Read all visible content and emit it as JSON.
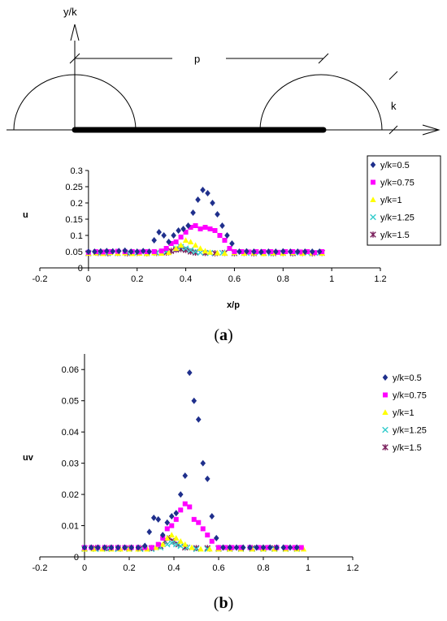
{
  "schematic": {
    "y_axis_label": "y/k",
    "pitch_label": "p",
    "height_label": "k"
  },
  "panels": [
    {
      "open": "(",
      "letter": "a",
      "close": ")"
    },
    {
      "open": "(",
      "letter": "b",
      "close": ")"
    }
  ],
  "chart_data": [
    {
      "type": "scatter",
      "title": "",
      "xlabel": "x/p",
      "ylabel": "u",
      "xlim": [
        -0.2,
        1.2
      ],
      "ylim": [
        0,
        0.3
      ],
      "xticks": [
        -0.2,
        0,
        0.2,
        0.4,
        0.6,
        0.8,
        1,
        1.2
      ],
      "yticks": [
        0,
        0.05,
        0.1,
        0.15,
        0.2,
        0.25,
        0.3
      ],
      "ytick_labels": [
        "0",
        "0.05",
        "0.1",
        "0.15",
        "0.2",
        "0.25",
        "0.3"
      ],
      "grid": false,
      "legend": "right",
      "series": [
        {
          "name": "y/k=0.5",
          "color": "#1f2f8c",
          "marker": "diamond",
          "x": [
            0,
            0.025,
            0.05,
            0.075,
            0.1,
            0.125,
            0.15,
            0.175,
            0.2,
            0.225,
            0.25,
            0.27,
            0.29,
            0.31,
            0.33,
            0.35,
            0.37,
            0.39,
            0.41,
            0.43,
            0.45,
            0.47,
            0.49,
            0.51,
            0.53,
            0.55,
            0.57,
            0.59,
            0.62,
            0.65,
            0.68,
            0.71,
            0.74,
            0.77,
            0.8,
            0.83,
            0.86,
            0.89,
            0.92,
            0.95
          ],
          "y": [
            0.05,
            0.05,
            0.051,
            0.052,
            0.051,
            0.052,
            0.053,
            0.05,
            0.05,
            0.052,
            0.05,
            0.085,
            0.11,
            0.1,
            0.08,
            0.1,
            0.115,
            0.12,
            0.13,
            0.17,
            0.21,
            0.24,
            0.23,
            0.2,
            0.165,
            0.13,
            0.1,
            0.075,
            0.05,
            0.051,
            0.05,
            0.049,
            0.05,
            0.05,
            0.051,
            0.05,
            0.05,
            0.05,
            0.05,
            0.05
          ]
        },
        {
          "name": "y/k=0.75",
          "color": "#ff00ff",
          "marker": "square",
          "x": [
            0,
            0.03,
            0.06,
            0.09,
            0.12,
            0.15,
            0.18,
            0.21,
            0.24,
            0.27,
            0.3,
            0.32,
            0.34,
            0.36,
            0.38,
            0.4,
            0.42,
            0.44,
            0.46,
            0.48,
            0.5,
            0.52,
            0.54,
            0.56,
            0.58,
            0.6,
            0.63,
            0.66,
            0.69,
            0.72,
            0.75,
            0.78,
            0.81,
            0.84,
            0.87,
            0.9,
            0.93,
            0.96
          ],
          "y": [
            0.048,
            0.05,
            0.049,
            0.05,
            0.051,
            0.05,
            0.05,
            0.049,
            0.05,
            0.05,
            0.052,
            0.06,
            0.075,
            0.08,
            0.095,
            0.11,
            0.125,
            0.13,
            0.12,
            0.125,
            0.12,
            0.115,
            0.1,
            0.085,
            0.06,
            0.05,
            0.05,
            0.049,
            0.05,
            0.05,
            0.05,
            0.048,
            0.05,
            0.05,
            0.049,
            0.05,
            0.047,
            0.05
          ]
        },
        {
          "name": "y/k=1",
          "color": "#ffff00",
          "marker": "triangle",
          "x": [
            0,
            0.03,
            0.06,
            0.09,
            0.12,
            0.15,
            0.18,
            0.21,
            0.24,
            0.27,
            0.3,
            0.33,
            0.36,
            0.38,
            0.4,
            0.42,
            0.44,
            0.46,
            0.48,
            0.5,
            0.53,
            0.56,
            0.6,
            0.64,
            0.68,
            0.72,
            0.76,
            0.8,
            0.84,
            0.88,
            0.92,
            0.96
          ],
          "y": [
            0.045,
            0.046,
            0.044,
            0.047,
            0.045,
            0.046,
            0.044,
            0.045,
            0.044,
            0.046,
            0.045,
            0.047,
            0.06,
            0.07,
            0.085,
            0.08,
            0.07,
            0.06,
            0.052,
            0.048,
            0.046,
            0.045,
            0.047,
            0.045,
            0.046,
            0.044,
            0.046,
            0.045,
            0.047,
            0.045,
            0.046,
            0.045
          ]
        },
        {
          "name": "y/k=1.25",
          "color": "#33cccc",
          "marker": "x",
          "x": [
            0,
            0.04,
            0.08,
            0.12,
            0.16,
            0.2,
            0.24,
            0.28,
            0.32,
            0.36,
            0.38,
            0.4,
            0.42,
            0.44,
            0.46,
            0.5,
            0.55,
            0.6,
            0.65,
            0.7,
            0.75,
            0.8,
            0.85,
            0.9,
            0.95
          ],
          "y": [
            0.046,
            0.047,
            0.046,
            0.045,
            0.047,
            0.046,
            0.047,
            0.046,
            0.05,
            0.06,
            0.065,
            0.06,
            0.055,
            0.05,
            0.047,
            0.046,
            0.046,
            0.047,
            0.046,
            0.047,
            0.045,
            0.046,
            0.047,
            0.046,
            0.046
          ]
        },
        {
          "name": "y/k=1.5",
          "color": "#7a1f5c",
          "marker": "star",
          "x": [
            0,
            0.04,
            0.08,
            0.12,
            0.16,
            0.2,
            0.24,
            0.28,
            0.32,
            0.34,
            0.36,
            0.38,
            0.4,
            0.42,
            0.44,
            0.48,
            0.52,
            0.56,
            0.6,
            0.64,
            0.68,
            0.72,
            0.76,
            0.8,
            0.84,
            0.88,
            0.92,
            0.96
          ],
          "y": [
            0.045,
            0.046,
            0.045,
            0.046,
            0.045,
            0.046,
            0.045,
            0.046,
            0.047,
            0.052,
            0.056,
            0.058,
            0.055,
            0.05,
            0.047,
            0.046,
            0.045,
            0.046,
            0.045,
            0.046,
            0.045,
            0.046,
            0.045,
            0.046,
            0.045,
            0.046,
            0.045,
            0.046
          ]
        }
      ]
    },
    {
      "type": "scatter",
      "title": "",
      "xlabel": "",
      "ylabel": "uv",
      "xlim": [
        -0.2,
        1.2
      ],
      "ylim": [
        0,
        0.065
      ],
      "xticks": [
        -0.2,
        0,
        0.2,
        0.4,
        0.6,
        0.8,
        1,
        1.2
      ],
      "yticks": [
        0,
        0.01,
        0.02,
        0.03,
        0.04,
        0.05,
        0.06
      ],
      "ytick_labels": [
        "0",
        "0.01",
        "0.02",
        "0.03",
        "0.04",
        "0.05",
        "0.06"
      ],
      "grid": false,
      "legend": "right",
      "series": [
        {
          "name": "y/k=0.5",
          "color": "#1f2f8c",
          "marker": "diamond",
          "x": [
            0,
            0.03,
            0.06,
            0.09,
            0.12,
            0.15,
            0.18,
            0.21,
            0.24,
            0.27,
            0.29,
            0.31,
            0.33,
            0.35,
            0.37,
            0.39,
            0.41,
            0.43,
            0.45,
            0.47,
            0.49,
            0.51,
            0.53,
            0.55,
            0.57,
            0.59,
            0.62,
            0.65,
            0.68,
            0.71,
            0.74,
            0.77,
            0.8,
            0.83,
            0.86,
            0.89,
            0.92,
            0.95
          ],
          "y": [
            0.003,
            0.003,
            0.003,
            0.003,
            0.003,
            0.003,
            0.003,
            0.003,
            0.003,
            0.0035,
            0.008,
            0.0125,
            0.012,
            0.007,
            0.011,
            0.013,
            0.014,
            0.02,
            0.026,
            0.059,
            0.05,
            0.044,
            0.03,
            0.025,
            0.013,
            0.006,
            0.003,
            0.003,
            0.003,
            0.003,
            0.003,
            0.003,
            0.003,
            0.003,
            0.003,
            0.003,
            0.003,
            0.003
          ]
        },
        {
          "name": "y/k=0.75",
          "color": "#ff00ff",
          "marker": "square",
          "x": [
            0,
            0.03,
            0.06,
            0.09,
            0.12,
            0.15,
            0.18,
            0.21,
            0.24,
            0.27,
            0.3,
            0.33,
            0.35,
            0.37,
            0.39,
            0.41,
            0.43,
            0.45,
            0.47,
            0.49,
            0.51,
            0.53,
            0.55,
            0.57,
            0.6,
            0.63,
            0.66,
            0.7,
            0.74,
            0.78,
            0.82,
            0.86,
            0.9,
            0.94,
            0.97
          ],
          "y": [
            0.003,
            0.003,
            0.003,
            0.003,
            0.003,
            0.003,
            0.003,
            0.003,
            0.003,
            0.003,
            0.003,
            0.004,
            0.006,
            0.009,
            0.01,
            0.012,
            0.015,
            0.017,
            0.016,
            0.012,
            0.011,
            0.009,
            0.007,
            0.005,
            0.003,
            0.003,
            0.003,
            0.003,
            0.003,
            0.003,
            0.003,
            0.003,
            0.003,
            0.003,
            0.003
          ]
        },
        {
          "name": "y/k=1",
          "color": "#ffff00",
          "marker": "triangle",
          "x": [
            0,
            0.04,
            0.08,
            0.12,
            0.16,
            0.2,
            0.24,
            0.28,
            0.32,
            0.35,
            0.37,
            0.39,
            0.41,
            0.43,
            0.45,
            0.48,
            0.52,
            0.56,
            0.6,
            0.65,
            0.7,
            0.75,
            0.8,
            0.85,
            0.9,
            0.95,
            0.98
          ],
          "y": [
            0.0025,
            0.0025,
            0.0025,
            0.0025,
            0.0025,
            0.0025,
            0.0025,
            0.0025,
            0.003,
            0.004,
            0.006,
            0.007,
            0.006,
            0.005,
            0.004,
            0.003,
            0.0025,
            0.0025,
            0.0025,
            0.0025,
            0.0025,
            0.0025,
            0.0025,
            0.0025,
            0.0025,
            0.0025,
            0.0025
          ]
        },
        {
          "name": "y/k=1.25",
          "color": "#33cccc",
          "marker": "x",
          "x": [
            0,
            0.05,
            0.1,
            0.15,
            0.2,
            0.25,
            0.3,
            0.34,
            0.37,
            0.39,
            0.41,
            0.43,
            0.46,
            0.5,
            0.55,
            0.6,
            0.65,
            0.7,
            0.75,
            0.8,
            0.85,
            0.9,
            0.95
          ],
          "y": [
            0.0025,
            0.0025,
            0.0025,
            0.0025,
            0.0025,
            0.0025,
            0.0025,
            0.003,
            0.004,
            0.0045,
            0.004,
            0.0035,
            0.003,
            0.0025,
            0.0025,
            0.0025,
            0.0025,
            0.0025,
            0.0025,
            0.0025,
            0.0025,
            0.0025,
            0.0025
          ]
        },
        {
          "name": "y/k=1.5",
          "color": "#7a1f5c",
          "marker": "star",
          "x": [
            0,
            0.05,
            0.1,
            0.15,
            0.2,
            0.25,
            0.3,
            0.34,
            0.36,
            0.38,
            0.4,
            0.42,
            0.45,
            0.5,
            0.55,
            0.6,
            0.65,
            0.7,
            0.75,
            0.8,
            0.85,
            0.9,
            0.95
          ],
          "y": [
            0.0028,
            0.0028,
            0.0028,
            0.0028,
            0.0028,
            0.0028,
            0.0028,
            0.0035,
            0.005,
            0.006,
            0.005,
            0.004,
            0.003,
            0.0028,
            0.0028,
            0.0028,
            0.0028,
            0.0028,
            0.0028,
            0.0028,
            0.0028,
            0.0028,
            0.0028
          ]
        }
      ]
    }
  ]
}
